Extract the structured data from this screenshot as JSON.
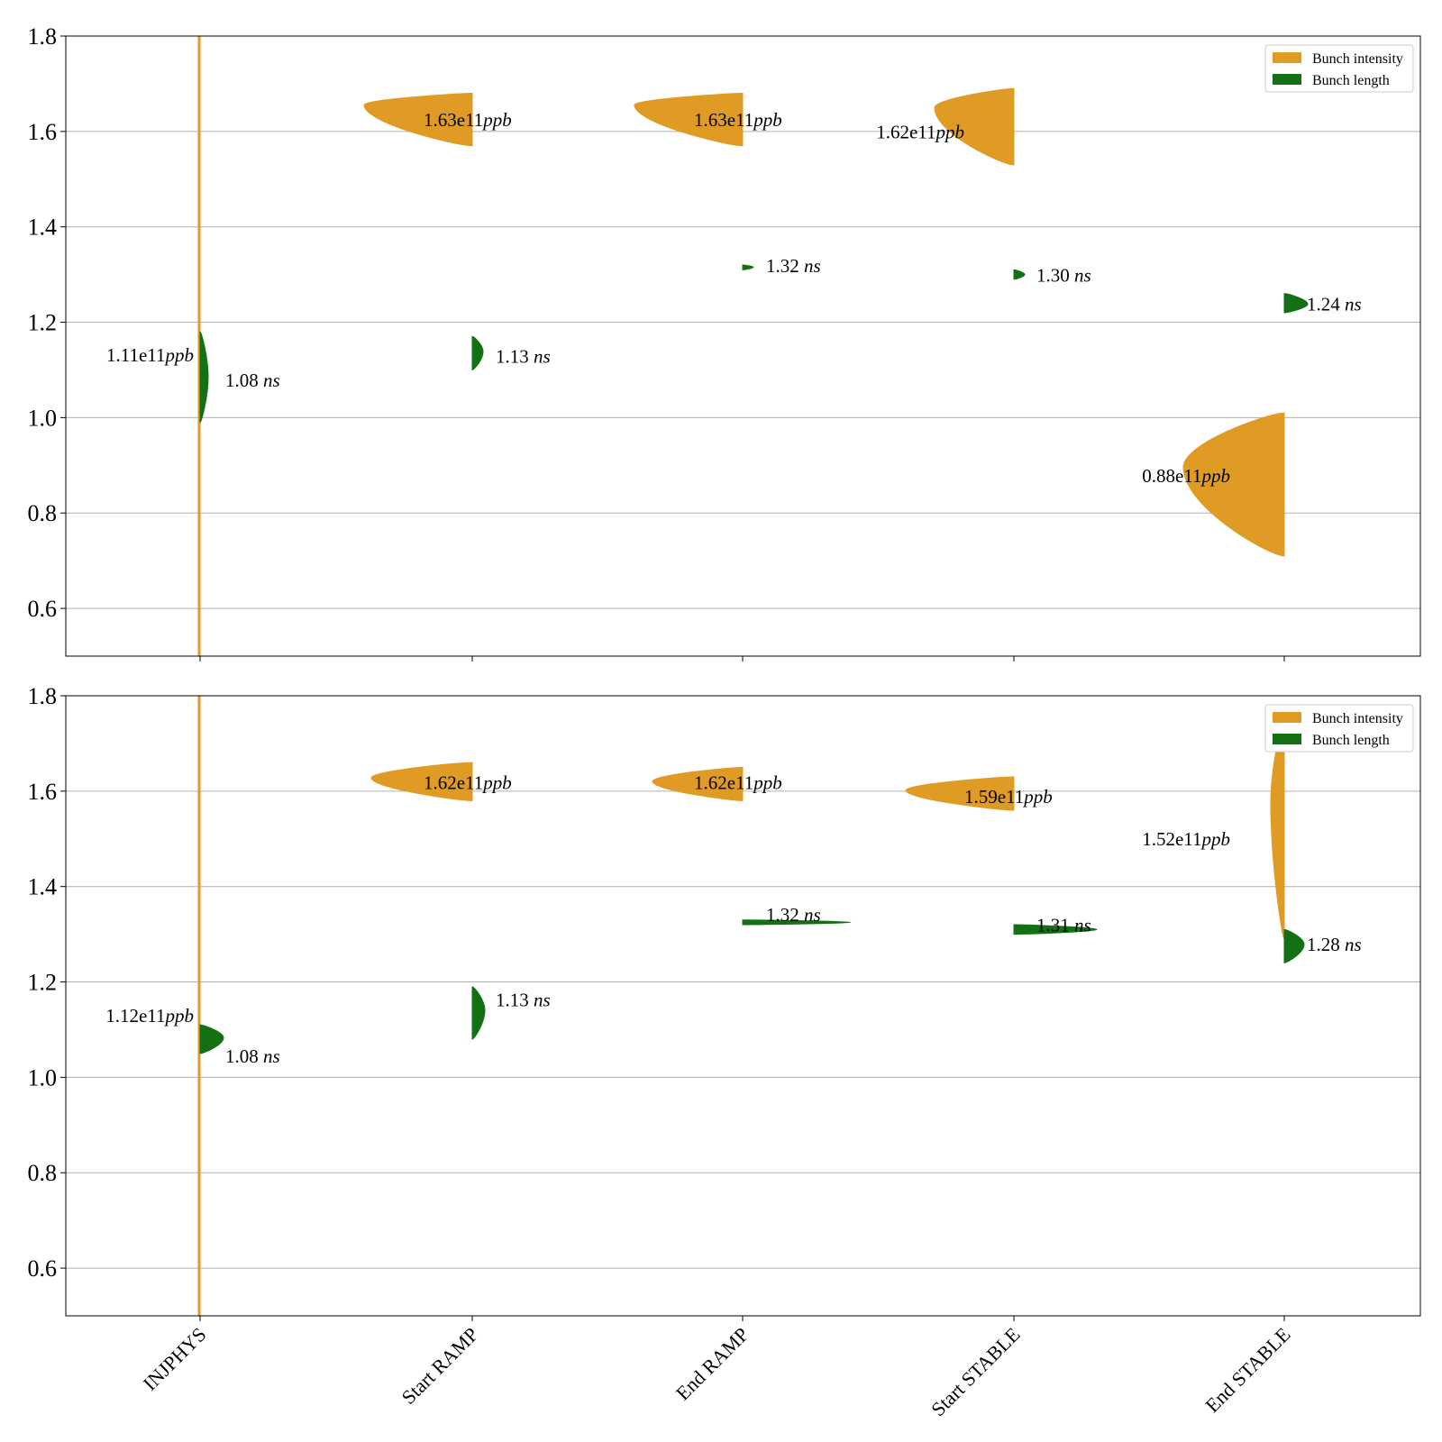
{
  "colors": {
    "intensity": "#e09b24",
    "length": "#147014",
    "grid": "#b0b0b0",
    "axis": "#000000"
  },
  "chart_data": [
    {
      "type": "violin",
      "panel": "top",
      "categories": [
        "INJPHYS",
        "Start RAMP",
        "End RAMP",
        "Start STABLE",
        "End STABLE"
      ],
      "ylim": [
        0.5,
        1.8
      ],
      "yticks": [
        0.6,
        0.8,
        1.0,
        1.2,
        1.4,
        1.6,
        1.8
      ],
      "grid": true,
      "legend": {
        "placement": "top-right",
        "entries": [
          "Bunch intensity",
          "Bunch length"
        ]
      },
      "series": [
        {
          "name": "Bunch intensity",
          "side": "left",
          "color_key": "intensity",
          "medians": [
            1.11,
            1.63,
            1.63,
            1.62,
            0.88
          ],
          "ranges": [
            [
              0.5,
              1.8
            ],
            [
              1.57,
              1.68
            ],
            [
              1.57,
              1.68
            ],
            [
              1.53,
              1.69
            ],
            [
              0.71,
              1.01
            ]
          ],
          "annotations": [
            {
              "num": "1.11e11",
              "unit": "ppb"
            },
            {
              "num": "1.63e11",
              "unit": "ppb"
            },
            {
              "num": "1.63e11",
              "unit": "ppb"
            },
            {
              "num": "1.62e11",
              "unit": "ppb"
            },
            {
              "num": "0.88e11",
              "unit": "ppb"
            }
          ]
        },
        {
          "name": "Bunch length",
          "side": "right",
          "color_key": "length",
          "medians": [
            1.08,
            1.13,
            1.32,
            1.3,
            1.24
          ],
          "ranges": [
            [
              0.99,
              1.18
            ],
            [
              1.1,
              1.17
            ],
            [
              1.31,
              1.32
            ],
            [
              1.29,
              1.31
            ],
            [
              1.22,
              1.26
            ]
          ],
          "annotations": [
            {
              "num": "1.08",
              "unit": "ns"
            },
            {
              "num": "1.13",
              "unit": "ns"
            },
            {
              "num": "1.32",
              "unit": "ns"
            },
            {
              "num": "1.30",
              "unit": "ns"
            },
            {
              "num": "1.24",
              "unit": "ns"
            }
          ]
        }
      ]
    },
    {
      "type": "violin",
      "panel": "bottom",
      "categories": [
        "INJPHYS",
        "Start RAMP",
        "End RAMP",
        "Start STABLE",
        "End STABLE"
      ],
      "ylim": [
        0.5,
        1.8
      ],
      "yticks": [
        0.6,
        0.8,
        1.0,
        1.2,
        1.4,
        1.6,
        1.8
      ],
      "grid": true,
      "legend": {
        "placement": "top-right",
        "entries": [
          "Bunch intensity",
          "Bunch length"
        ]
      },
      "series": [
        {
          "name": "Bunch intensity",
          "side": "left",
          "color_key": "intensity",
          "medians": [
            1.12,
            1.62,
            1.62,
            1.59,
            1.52
          ],
          "ranges": [
            [
              0.5,
              1.8
            ],
            [
              1.58,
              1.66
            ],
            [
              1.58,
              1.65
            ],
            [
              1.56,
              1.63
            ],
            [
              1.29,
              1.75
            ]
          ],
          "annotations": [
            {
              "num": "1.12e11",
              "unit": "ppb"
            },
            {
              "num": "1.62e11",
              "unit": "ppb"
            },
            {
              "num": "1.62e11",
              "unit": "ppb"
            },
            {
              "num": "1.59e11",
              "unit": "ppb"
            },
            {
              "num": "1.52e11",
              "unit": "ppb"
            }
          ]
        },
        {
          "name": "Bunch length",
          "side": "right",
          "color_key": "length",
          "medians": [
            1.08,
            1.13,
            1.32,
            1.31,
            1.28
          ],
          "ranges": [
            [
              1.05,
              1.11
            ],
            [
              1.08,
              1.19
            ],
            [
              1.32,
              1.33
            ],
            [
              1.3,
              1.32
            ],
            [
              1.24,
              1.31
            ]
          ],
          "annotations": [
            {
              "num": "1.08",
              "unit": "ns"
            },
            {
              "num": "1.13",
              "unit": "ns"
            },
            {
              "num": "1.32",
              "unit": "ns"
            },
            {
              "num": "1.31",
              "unit": "ns"
            },
            {
              "num": "1.28",
              "unit": "ns"
            }
          ]
        }
      ]
    }
  ]
}
